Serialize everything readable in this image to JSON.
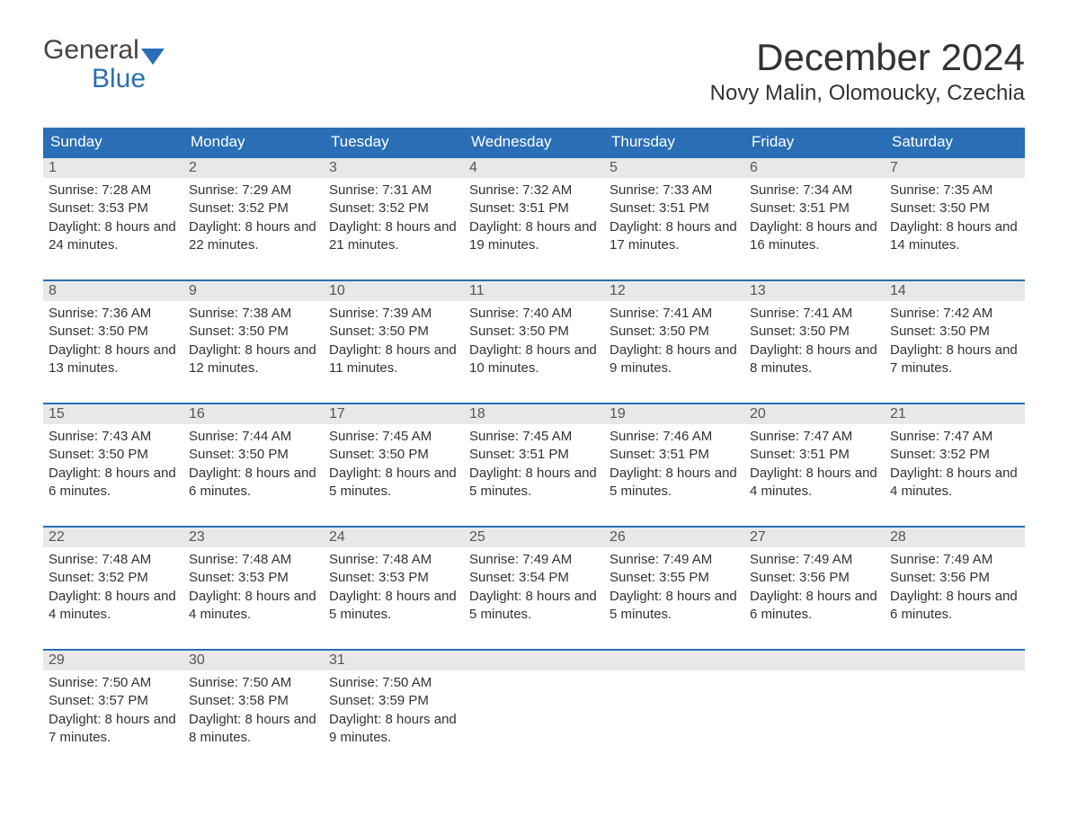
{
  "brand": {
    "word1": "General",
    "word2": "Blue",
    "accent": "#2a6fb5"
  },
  "title": "December 2024",
  "location": "Novy Malin, Olomoucky, Czechia",
  "colors": {
    "header_bg": "#2a6fb5",
    "header_text": "#ffffff",
    "daynum_bg": "#e8e8e8",
    "daynum_border": "#2a6fb5",
    "body_text": "#333333",
    "page_bg": "#ffffff"
  },
  "day_labels": [
    "Sunday",
    "Monday",
    "Tuesday",
    "Wednesday",
    "Thursday",
    "Friday",
    "Saturday"
  ],
  "weeks": [
    [
      {
        "n": "1",
        "sunrise": "7:28 AM",
        "sunset": "3:53 PM",
        "daylight": "8 hours and 24 minutes."
      },
      {
        "n": "2",
        "sunrise": "7:29 AM",
        "sunset": "3:52 PM",
        "daylight": "8 hours and 22 minutes."
      },
      {
        "n": "3",
        "sunrise": "7:31 AM",
        "sunset": "3:52 PM",
        "daylight": "8 hours and 21 minutes."
      },
      {
        "n": "4",
        "sunrise": "7:32 AM",
        "sunset": "3:51 PM",
        "daylight": "8 hours and 19 minutes."
      },
      {
        "n": "5",
        "sunrise": "7:33 AM",
        "sunset": "3:51 PM",
        "daylight": "8 hours and 17 minutes."
      },
      {
        "n": "6",
        "sunrise": "7:34 AM",
        "sunset": "3:51 PM",
        "daylight": "8 hours and 16 minutes."
      },
      {
        "n": "7",
        "sunrise": "7:35 AM",
        "sunset": "3:50 PM",
        "daylight": "8 hours and 14 minutes."
      }
    ],
    [
      {
        "n": "8",
        "sunrise": "7:36 AM",
        "sunset": "3:50 PM",
        "daylight": "8 hours and 13 minutes."
      },
      {
        "n": "9",
        "sunrise": "7:38 AM",
        "sunset": "3:50 PM",
        "daylight": "8 hours and 12 minutes."
      },
      {
        "n": "10",
        "sunrise": "7:39 AM",
        "sunset": "3:50 PM",
        "daylight": "8 hours and 11 minutes."
      },
      {
        "n": "11",
        "sunrise": "7:40 AM",
        "sunset": "3:50 PM",
        "daylight": "8 hours and 10 minutes."
      },
      {
        "n": "12",
        "sunrise": "7:41 AM",
        "sunset": "3:50 PM",
        "daylight": "8 hours and 9 minutes."
      },
      {
        "n": "13",
        "sunrise": "7:41 AM",
        "sunset": "3:50 PM",
        "daylight": "8 hours and 8 minutes."
      },
      {
        "n": "14",
        "sunrise": "7:42 AM",
        "sunset": "3:50 PM",
        "daylight": "8 hours and 7 minutes."
      }
    ],
    [
      {
        "n": "15",
        "sunrise": "7:43 AM",
        "sunset": "3:50 PM",
        "daylight": "8 hours and 6 minutes."
      },
      {
        "n": "16",
        "sunrise": "7:44 AM",
        "sunset": "3:50 PM",
        "daylight": "8 hours and 6 minutes."
      },
      {
        "n": "17",
        "sunrise": "7:45 AM",
        "sunset": "3:50 PM",
        "daylight": "8 hours and 5 minutes."
      },
      {
        "n": "18",
        "sunrise": "7:45 AM",
        "sunset": "3:51 PM",
        "daylight": "8 hours and 5 minutes."
      },
      {
        "n": "19",
        "sunrise": "7:46 AM",
        "sunset": "3:51 PM",
        "daylight": "8 hours and 5 minutes."
      },
      {
        "n": "20",
        "sunrise": "7:47 AM",
        "sunset": "3:51 PM",
        "daylight": "8 hours and 4 minutes."
      },
      {
        "n": "21",
        "sunrise": "7:47 AM",
        "sunset": "3:52 PM",
        "daylight": "8 hours and 4 minutes."
      }
    ],
    [
      {
        "n": "22",
        "sunrise": "7:48 AM",
        "sunset": "3:52 PM",
        "daylight": "8 hours and 4 minutes."
      },
      {
        "n": "23",
        "sunrise": "7:48 AM",
        "sunset": "3:53 PM",
        "daylight": "8 hours and 4 minutes."
      },
      {
        "n": "24",
        "sunrise": "7:48 AM",
        "sunset": "3:53 PM",
        "daylight": "8 hours and 5 minutes."
      },
      {
        "n": "25",
        "sunrise": "7:49 AM",
        "sunset": "3:54 PM",
        "daylight": "8 hours and 5 minutes."
      },
      {
        "n": "26",
        "sunrise": "7:49 AM",
        "sunset": "3:55 PM",
        "daylight": "8 hours and 5 minutes."
      },
      {
        "n": "27",
        "sunrise": "7:49 AM",
        "sunset": "3:56 PM",
        "daylight": "8 hours and 6 minutes."
      },
      {
        "n": "28",
        "sunrise": "7:49 AM",
        "sunset": "3:56 PM",
        "daylight": "8 hours and 6 minutes."
      }
    ],
    [
      {
        "n": "29",
        "sunrise": "7:50 AM",
        "sunset": "3:57 PM",
        "daylight": "8 hours and 7 minutes."
      },
      {
        "n": "30",
        "sunrise": "7:50 AM",
        "sunset": "3:58 PM",
        "daylight": "8 hours and 8 minutes."
      },
      {
        "n": "31",
        "sunrise": "7:50 AM",
        "sunset": "3:59 PM",
        "daylight": "8 hours and 9 minutes."
      },
      {
        "n": "",
        "empty": true
      },
      {
        "n": "",
        "empty": true
      },
      {
        "n": "",
        "empty": true
      },
      {
        "n": "",
        "empty": true
      }
    ]
  ],
  "labels": {
    "sunrise": "Sunrise: ",
    "sunset": "Sunset: ",
    "daylight": "Daylight: "
  }
}
